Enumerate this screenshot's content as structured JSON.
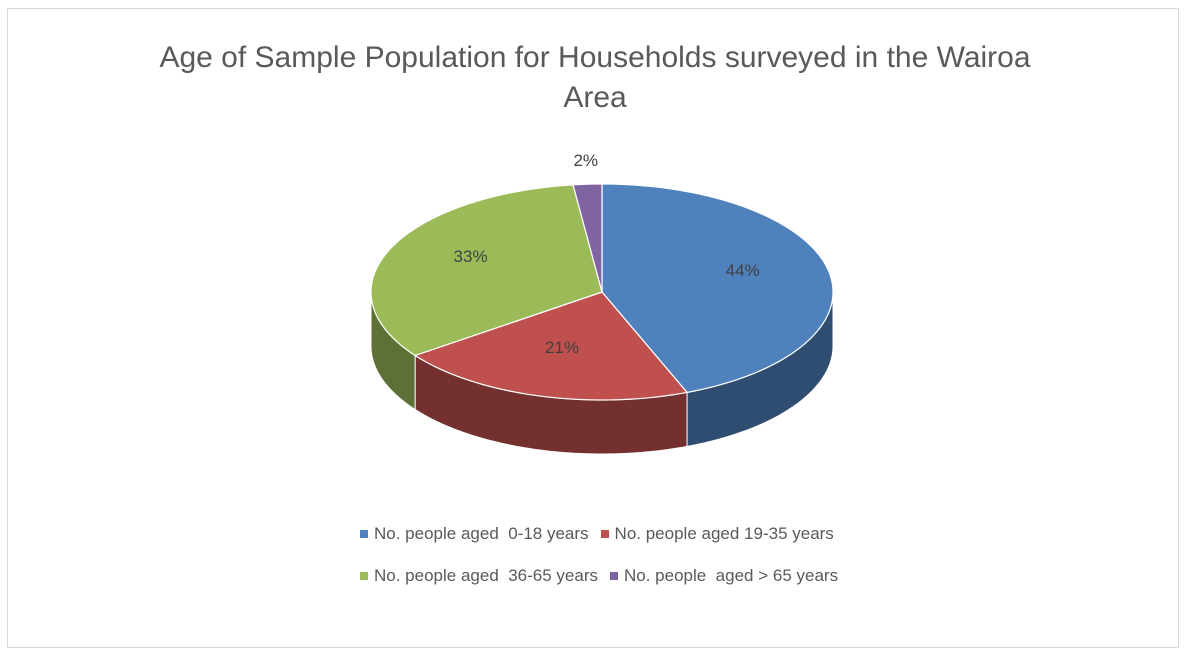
{
  "chart_data": {
    "type": "pie",
    "title": "Age of Sample Population for Households surveyed in the Wairoa Area",
    "categories": [
      "No. people aged  0-18 years",
      "No. people aged 19-35 years",
      "No. people aged  36-65 years",
      "No. people  aged > 65 years"
    ],
    "values": [
      44,
      21,
      33,
      2
    ],
    "value_labels": [
      "44%",
      "21%",
      "33%",
      "2%"
    ],
    "colors": [
      "#4f81bd",
      "#c0504d",
      "#9bbb59",
      "#8064a2"
    ],
    "legend": "bottom"
  }
}
